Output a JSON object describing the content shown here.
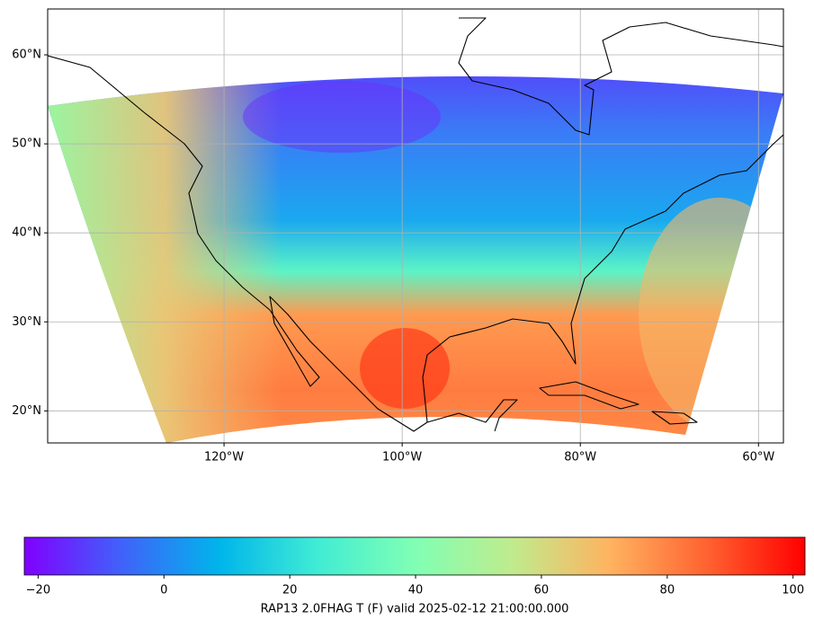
{
  "map": {
    "lonlim": [
      -139.8,
      -57.2
    ],
    "latlim": [
      16.4,
      65.15
    ],
    "lonticks": [
      {
        "value": -120,
        "label": "120°W"
      },
      {
        "value": -100,
        "label": "100°W"
      },
      {
        "value": -80,
        "label": "80°W"
      },
      {
        "value": -60,
        "label": "60°W"
      }
    ],
    "latticks": [
      {
        "value": 20,
        "label": "20°N"
      },
      {
        "value": 30,
        "label": "30°N"
      },
      {
        "value": 40,
        "label": "40°N"
      },
      {
        "value": 50,
        "label": "50°N"
      },
      {
        "value": 60,
        "label": "60°N"
      }
    ],
    "grid": true
  },
  "colorbar": {
    "clim": [
      -22.2,
      101.9
    ],
    "ticks": [
      {
        "value": -20,
        "label": "−20"
      },
      0,
      20,
      40,
      60,
      80,
      100
    ],
    "label": "RAP13 2.0FHAG T (F) valid 2025-02-12 21:00:00.000"
  }
}
